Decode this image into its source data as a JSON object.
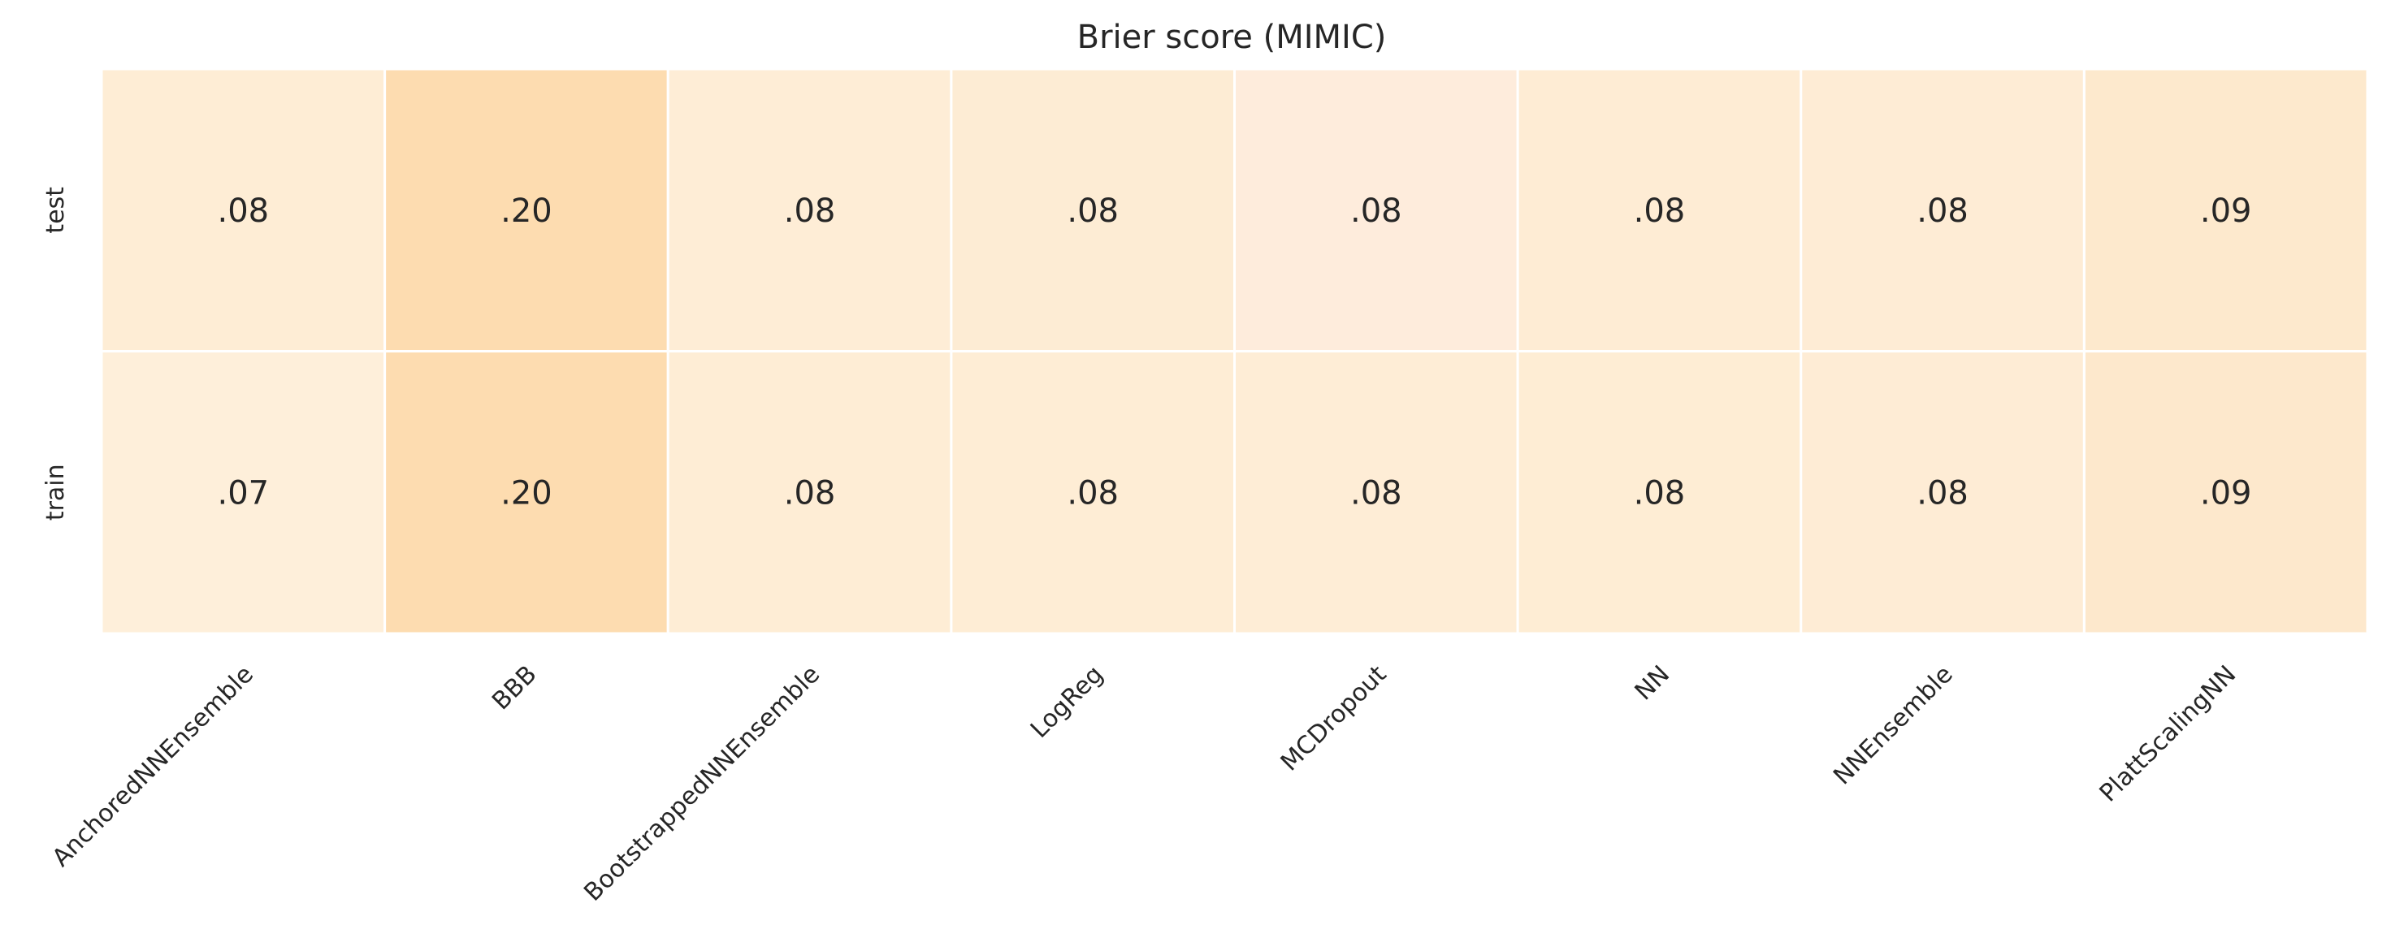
{
  "chart_data": {
    "type": "heatmap",
    "title": "Brier score (MIMIC)",
    "xlabel": "",
    "ylabel": "",
    "columns": [
      "AnchoredNNEnsemble",
      "BBB",
      "BootstrappedNNEnsemble",
      "LogReg",
      "MCDropout",
      "NN",
      "NNEnsemble",
      "PlattScalingNN"
    ],
    "rows": [
      "test",
      "train"
    ],
    "values": [
      [
        0.08,
        0.2,
        0.08,
        0.08,
        0.08,
        0.08,
        0.08,
        0.09
      ],
      [
        0.07,
        0.2,
        0.08,
        0.08,
        0.08,
        0.08,
        0.08,
        0.09
      ]
    ],
    "cell_labels": [
      [
        ".08",
        ".20",
        ".08",
        ".08",
        ".08",
        ".08",
        ".08",
        ".09"
      ],
      [
        ".07",
        ".20",
        ".08",
        ".08",
        ".08",
        ".08",
        ".08",
        ".09"
      ]
    ],
    "cell_colors": [
      [
        "#feedd5",
        "#fddcb0",
        "#feedd6",
        "#fdecd4",
        "#feecdc",
        "#feecd4",
        "#feecd5",
        "#fde9cd"
      ],
      [
        "#feefda",
        "#fddcb0",
        "#feedd5",
        "#feedd5",
        "#feedd6",
        "#feedd4",
        "#feecd5",
        "#fde8cc"
      ]
    ],
    "colorbar": false,
    "grid": false,
    "cell_borders": "white"
  }
}
